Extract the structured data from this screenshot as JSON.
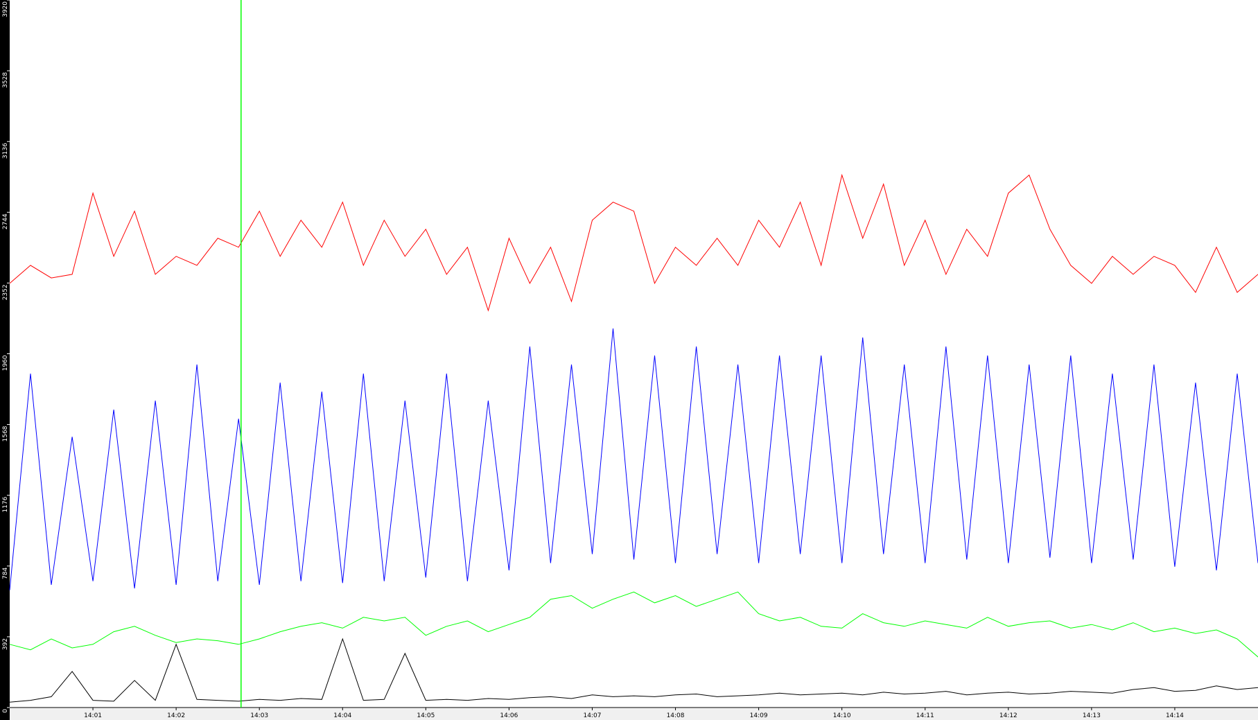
{
  "chart_data": {
    "type": "line",
    "x": [
      0,
      0.25,
      0.5,
      0.75,
      1,
      1.25,
      1.5,
      1.75,
      2,
      2.25,
      2.5,
      2.75,
      3,
      3.25,
      3.5,
      3.75,
      4,
      4.25,
      4.5,
      4.75,
      5,
      5.25,
      5.5,
      5.75,
      6,
      6.25,
      6.5,
      6.75,
      7,
      7.25,
      7.5,
      7.75,
      8,
      8.25,
      8.5,
      8.75,
      9,
      9.25,
      9.5,
      9.75,
      10,
      10.25,
      10.5,
      10.75,
      11,
      11.25,
      11.5,
      11.75,
      12,
      12.25,
      12.5,
      12.75,
      13,
      13.25,
      13.5,
      13.75,
      14,
      14.25,
      14.5,
      14.75,
      15
    ],
    "series": [
      {
        "color": "#ff0000",
        "values": [
          2350,
          2450,
          2380,
          2400,
          2850,
          2500,
          2750,
          2400,
          2500,
          2450,
          2600,
          2550,
          2750,
          2500,
          2700,
          2550,
          2800,
          2450,
          2700,
          2500,
          2650,
          2400,
          2550,
          2200,
          2600,
          2350,
          2550,
          2250,
          2700,
          2800,
          2750,
          2350,
          2550,
          2450,
          2600,
          2450,
          2700,
          2550,
          2800,
          2450,
          2950,
          2600,
          2900,
          2450,
          2700,
          2400,
          2650,
          2500,
          2850,
          2950,
          2650,
          2450,
          2350,
          2500,
          2400,
          2500,
          2450,
          2300,
          2550,
          2300,
          2400
        ]
      },
      {
        "color": "#0000ff",
        "values": [
          650,
          1850,
          680,
          1500,
          700,
          1650,
          660,
          1700,
          680,
          1900,
          700,
          1600,
          680,
          1800,
          700,
          1750,
          690,
          1850,
          700,
          1700,
          720,
          1850,
          700,
          1700,
          760,
          2000,
          800,
          1900,
          850,
          2100,
          820,
          1950,
          800,
          2000,
          850,
          1900,
          800,
          1950,
          850,
          1950,
          800,
          2050,
          850,
          1900,
          800,
          2000,
          820,
          1950,
          800,
          1900,
          830,
          1950,
          800,
          1850,
          820,
          1900,
          780,
          1800,
          760,
          1850,
          800
        ]
      },
      {
        "color": "#00ff00",
        "values": [
          350,
          320,
          380,
          330,
          350,
          420,
          450,
          400,
          360,
          380,
          370,
          350,
          380,
          420,
          450,
          470,
          440,
          500,
          480,
          500,
          400,
          450,
          480,
          420,
          460,
          500,
          600,
          620,
          550,
          600,
          640,
          580,
          620,
          560,
          600,
          640,
          520,
          480,
          500,
          450,
          440,
          520,
          470,
          450,
          480,
          460,
          440,
          500,
          450,
          470,
          480,
          440,
          460,
          430,
          470,
          420,
          440,
          410,
          430,
          380,
          280
        ]
      },
      {
        "color": "#000000",
        "values": [
          30,
          40,
          60,
          200,
          40,
          35,
          150,
          40,
          350,
          45,
          40,
          35,
          45,
          40,
          50,
          45,
          380,
          40,
          45,
          300,
          40,
          45,
          40,
          50,
          45,
          55,
          60,
          50,
          70,
          60,
          65,
          60,
          70,
          75,
          60,
          65,
          70,
          80,
          70,
          75,
          80,
          70,
          85,
          75,
          80,
          90,
          70,
          80,
          85,
          75,
          80,
          90,
          85,
          80,
          100,
          110,
          90,
          95,
          120,
          100,
          110
        ]
      }
    ],
    "vline": {
      "x": 2.78,
      "color": "#00ff00"
    },
    "xlim": [
      0,
      15
    ],
    "xticks": [
      {
        "value": 1,
        "label": "14:01"
      },
      {
        "value": 2,
        "label": "14:02"
      },
      {
        "value": 3,
        "label": "14:03"
      },
      {
        "value": 4,
        "label": "14:04"
      },
      {
        "value": 5,
        "label": "14:05"
      },
      {
        "value": 6,
        "label": "14:06"
      },
      {
        "value": 7,
        "label": "14:07"
      },
      {
        "value": 8,
        "label": "14:08"
      },
      {
        "value": 9,
        "label": "14:09"
      },
      {
        "value": 10,
        "label": "14:10"
      },
      {
        "value": 11,
        "label": "14:11"
      },
      {
        "value": 12,
        "label": "14:12"
      },
      {
        "value": 13,
        "label": "14:13"
      },
      {
        "value": 14,
        "label": "14:14"
      }
    ],
    "ylim": [
      0,
      3920
    ],
    "yticks": [
      0,
      392,
      784,
      1176,
      1568,
      1960,
      2352,
      2744,
      3136,
      3528,
      3920
    ]
  }
}
